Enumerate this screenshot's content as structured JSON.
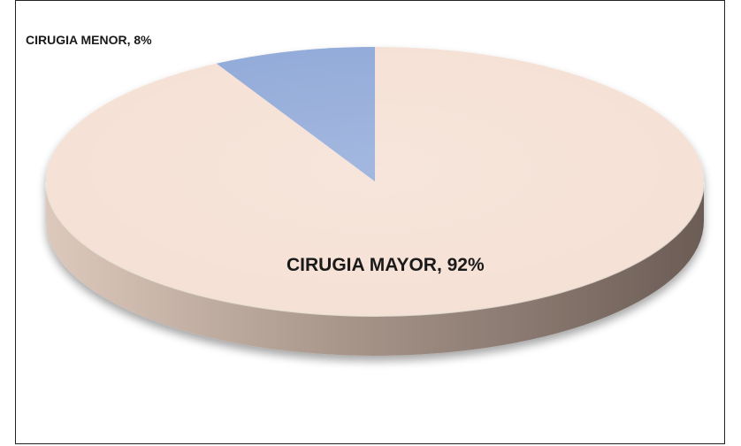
{
  "chart_data": {
    "type": "pie",
    "title": "",
    "style": "3d",
    "slices": [
      {
        "label": "CIRUGIA MAYOR",
        "value": 92,
        "display": "CIRUGIA MAYOR, 92%",
        "color": "#F5E0D4"
      },
      {
        "label": "CIRUGIA MENOR",
        "value": 8,
        "display": "CIRUGIA MENOR, 8%",
        "color": "#8FA8D8"
      }
    ],
    "colors": {
      "side_light": "#DDC9BC",
      "side_dark": "#6B5C55",
      "border": "#222222"
    }
  }
}
